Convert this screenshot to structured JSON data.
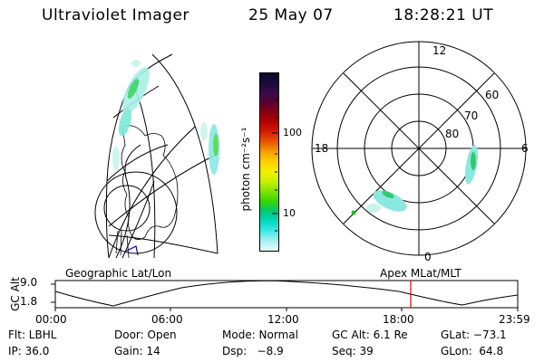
{
  "header": {
    "title": "Ultraviolet Imager",
    "date": "25 May 07",
    "time": "18:28:21 UT"
  },
  "colorbar": {
    "unit_label": "photon cm⁻²s⁻¹",
    "ticks": [
      "100",
      "10"
    ],
    "colors": [
      "#0b0b2a",
      "#1a0a3a",
      "#3a0a4a",
      "#5a0030",
      "#8a0010",
      "#b80000",
      "#d42000",
      "#e85a00",
      "#f4a000",
      "#ffd000",
      "#f4f000",
      "#c8f000",
      "#7ee400",
      "#36d400",
      "#00c878",
      "#00d8c0",
      "#40e8e8",
      "#a8f0f0",
      "#e8f8f8"
    ]
  },
  "polar_plot": {
    "labels": {
      "top": "12",
      "bottom": "0",
      "left": "18",
      "right": "6",
      "lat_60": "60",
      "lat_70": "70",
      "lat_80": "80"
    }
  },
  "timeline": {
    "ylabel": "GC Alt",
    "ytick_top": "9.0",
    "ytick_bottom": "1.8",
    "left_title": "Geographic Lat/Lon",
    "right_title": "Apex MLat/MLT",
    "xticks": [
      "00:00",
      "06:00",
      "12:00",
      "18:00",
      "23:59"
    ],
    "marker_color": "#e00000"
  },
  "info": {
    "row1": {
      "filter": "Flt: LBHL",
      "door": "Door: Open",
      "mode": "Mode: Normal",
      "gc_alt": "GC Alt: 6.1 Re",
      "glat": "GLat: −73.1"
    },
    "row2": {
      "ip": "IP: 36.0",
      "gain": "Gain: 14",
      "dsp": "Dsp:   −8.9",
      "seq": "Seq: 39",
      "glon": "GLon:  64.8"
    }
  }
}
